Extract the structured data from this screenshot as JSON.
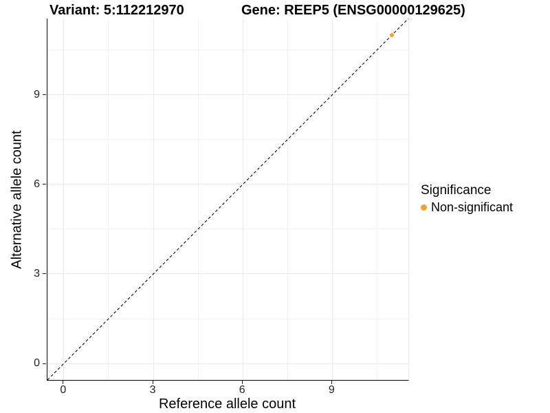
{
  "titles": {
    "variant": "Variant: 5:112212970",
    "gene": "Gene: REEP5 (ENSG00000129625)"
  },
  "chart_data": {
    "type": "scatter",
    "title_left": "Variant: 5:112212970",
    "title_right": "Gene: REEP5 (ENSG00000129625)",
    "xlabel": "Reference allele count",
    "ylabel": "Alternative allele count",
    "x_ticks": [
      0,
      3,
      6,
      9
    ],
    "y_ticks": [
      0,
      3,
      6,
      9
    ],
    "x_minor_ticks": [
      1.5,
      4.5,
      7.5,
      10.5
    ],
    "y_minor_ticks": [
      1.5,
      4.5,
      7.5,
      10.5
    ],
    "xlim": [
      -0.55,
      11.55
    ],
    "ylim": [
      -0.55,
      11.55
    ],
    "grid": true,
    "legend_position": "right",
    "identity_line": {
      "style": "dashed",
      "color": "#000000",
      "from": [
        -0.55,
        -0.55
      ],
      "to": [
        11.55,
        11.55
      ]
    },
    "series": [
      {
        "name": "Non-significant",
        "color": "#F8A02E",
        "points": [
          [
            11,
            11
          ]
        ]
      }
    ]
  },
  "legend": {
    "title": "Significance",
    "items": [
      {
        "label": "Non-significant",
        "color": "#F8A02E",
        "marker": "dot"
      }
    ]
  },
  "colors": {
    "point_orange": "#F8A02E",
    "grid_major": "#e9e9e9",
    "grid_minor": "#f3f3f3",
    "axis_line": "#000000",
    "background": "#ffffff"
  }
}
